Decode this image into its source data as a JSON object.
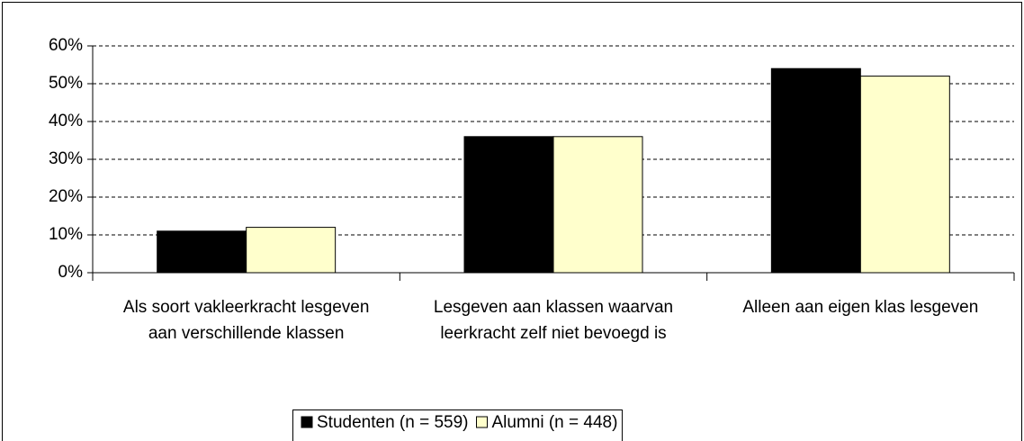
{
  "chart_data": {
    "type": "bar",
    "categories": [
      "Als soort vakleerkracht lesgeven aan verschillende klassen",
      "Lesgeven aan klassen waarvan leerkracht zelf niet bevoegd is",
      "Alleen aan eigen klas lesgeven"
    ],
    "series": [
      {
        "name": "Studenten (n = 559)",
        "color": "#000000",
        "values": [
          11,
          36,
          54
        ]
      },
      {
        "name": "Alumni (n = 448)",
        "color": "#ffffcc",
        "values": [
          12,
          36,
          52
        ]
      }
    ],
    "ylim": [
      0,
      60
    ],
    "yticks": [
      {
        "value": 0,
        "label": "0%"
      },
      {
        "value": 10,
        "label": "10%"
      },
      {
        "value": 20,
        "label": "20%"
      },
      {
        "value": 30,
        "label": "30%"
      },
      {
        "value": 40,
        "label": "40%"
      },
      {
        "value": 50,
        "label": "50%"
      },
      {
        "value": 60,
        "label": "60%"
      }
    ],
    "grid": true,
    "legend": "bottom"
  }
}
